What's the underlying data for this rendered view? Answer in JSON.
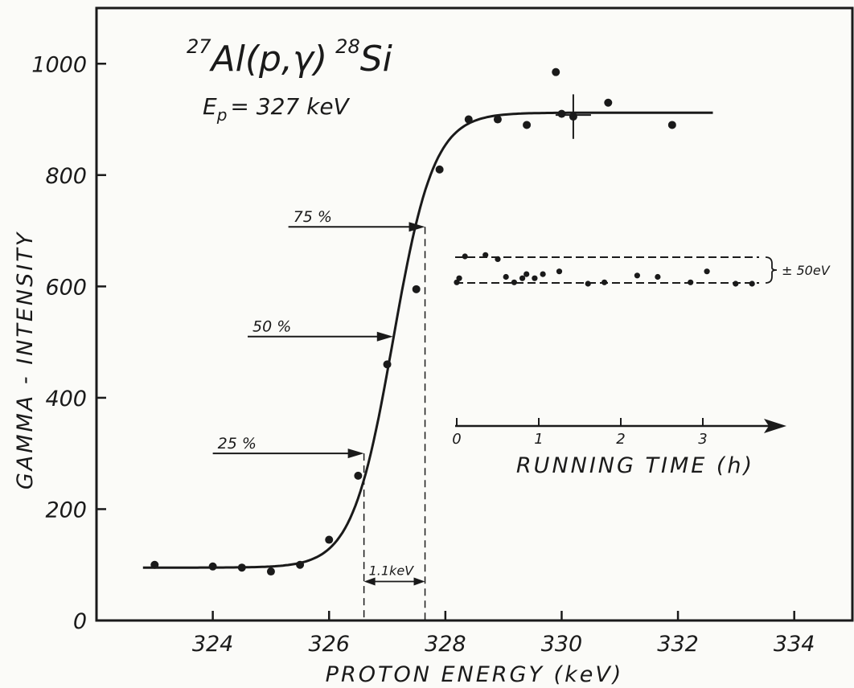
{
  "chart_data": {
    "type": "scatter",
    "title": {
      "mass_a": "27",
      "reaction": "Al(p,γ)",
      "mass_b": "28",
      "product": "Si"
    },
    "subtitle": {
      "symbol": "E",
      "subscript": "p",
      "rest": "= 327 keV"
    },
    "xlabel": "PROTON  ENERGY   (keV)",
    "ylabel": "GAMMA - INTENSITY",
    "xlim": [
      322.0,
      335.0
    ],
    "ylim": [
      0,
      1100
    ],
    "x_ticks": [
      {
        "value": 324,
        "label": "324"
      },
      {
        "value": 326,
        "label": "326"
      },
      {
        "value": 328,
        "label": "328"
      },
      {
        "value": 330,
        "label": "330"
      },
      {
        "value": 332,
        "label": "332"
      },
      {
        "value": 334,
        "label": "334"
      }
    ],
    "y_ticks": [
      {
        "value": 0,
        "label": "0"
      },
      {
        "value": 200,
        "label": "200"
      },
      {
        "value": 400,
        "label": "400"
      },
      {
        "value": 600,
        "label": "600"
      },
      {
        "value": 800,
        "label": "800"
      },
      {
        "value": 1000,
        "label": "1000"
      }
    ],
    "series": [
      {
        "x": [
          323.0,
          324.0,
          324.5,
          325.0,
          325.5,
          326.0,
          326.5,
          327.0,
          327.5,
          327.9,
          328.4,
          328.9,
          329.4,
          329.9,
          330.0,
          330.2,
          330.8,
          331.9
        ],
        "y": [
          100,
          97,
          95,
          88,
          100,
          145,
          260,
          460,
          595,
          810,
          900,
          900,
          890,
          985,
          910,
          905,
          930,
          890
        ]
      }
    ],
    "fit_curve": {
      "x_start": 322.8,
      "x_end": 332.6,
      "baseline": 95,
      "plateau": 912,
      "midpoint": 327.1,
      "width": 0.35
    },
    "error_bar": {
      "x": 330.2,
      "y": 905,
      "y_low": 865,
      "y_high": 945
    },
    "annotations": {
      "p75": {
        "label": "75 %",
        "x_from": 325.3,
        "x_to": 327.65,
        "y": 707
      },
      "p50": {
        "label": "50 %",
        "x_from": 324.6,
        "x_to": 327.1,
        "y": 510
      },
      "p25": {
        "label": "25 %",
        "x_from": 324.0,
        "x_to": 326.6,
        "y": 300
      },
      "dashed_left": {
        "x": 326.6,
        "y_top": 300
      },
      "dashed_right": {
        "x": 327.65,
        "y_top": 707
      },
      "width_label": "1.1keV",
      "width_y": 70
    },
    "inset": {
      "title": "RUNNING  TIME (h)",
      "x_ticks": [
        "0",
        "1",
        "2",
        "3"
      ],
      "band_label": "± 50eV",
      "points": [
        0.0,
        0.03,
        0.1,
        0.35,
        0.5,
        0.6,
        0.7,
        0.8,
        0.85,
        0.95,
        1.05,
        1.25,
        1.6,
        1.8,
        2.2,
        2.45,
        2.85,
        3.05,
        3.4,
        3.6
      ],
      "offsets": [
        -0.9,
        -0.6,
        1.0,
        1.1,
        0.8,
        -0.5,
        -0.9,
        -0.6,
        -0.3,
        -0.6,
        -0.3,
        -0.1,
        -1.0,
        -0.9,
        -0.4,
        -0.5,
        -0.9,
        -0.1,
        -1.0,
        -1.0
      ]
    }
  }
}
